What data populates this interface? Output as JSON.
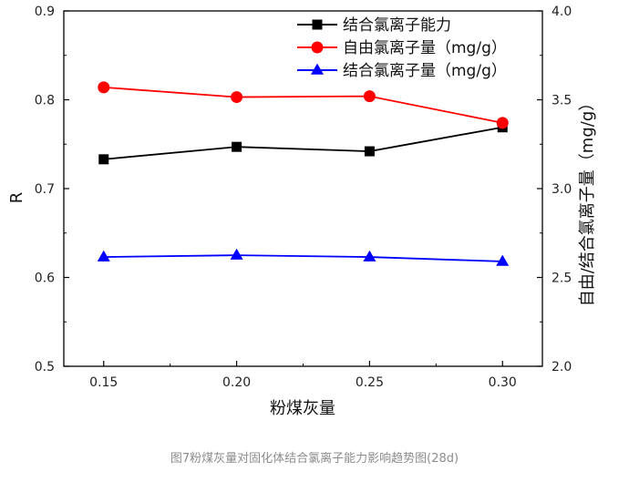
{
  "chart_data": {
    "type": "line",
    "x": [
      0.15,
      0.2,
      0.25,
      0.3
    ],
    "x_tick_labels": [
      "0.15",
      "0.20",
      "0.25",
      "0.30"
    ],
    "xlabel": "粉煤灰量",
    "xlim": [
      0.135,
      0.315
    ],
    "ylabel_left": "R",
    "ylim_left": [
      0.5,
      0.9
    ],
    "y_left_ticks": [
      "0.5",
      "0.6",
      "0.7",
      "0.8",
      "0.9"
    ],
    "ylabel_right": "自由/结合氯离子量（mg/g）",
    "ylim_right": [
      2.0,
      4.0
    ],
    "y_right_ticks": [
      "2.0",
      "2.5",
      "3.0",
      "3.5",
      "4.0"
    ],
    "legend_position": "top-right",
    "series": [
      {
        "name": "结合氯离子能力",
        "axis": "left",
        "color": "#000000",
        "marker": "square",
        "values": [
          0.733,
          0.747,
          0.742,
          0.769
        ]
      },
      {
        "name": "自由氯离子量（mg/g）",
        "axis": "right",
        "color": "#ff0000",
        "marker": "circle",
        "values": [
          3.57,
          3.515,
          3.52,
          3.37
        ]
      },
      {
        "name": "结合氯离子量（mg/g）",
        "axis": "right",
        "color": "#0000ff",
        "marker": "triangle",
        "values": [
          2.615,
          2.625,
          2.615,
          2.59
        ]
      }
    ]
  },
  "caption": "图7粉煤灰量对固化体结合氯离子能力影响趋势图(28d)"
}
